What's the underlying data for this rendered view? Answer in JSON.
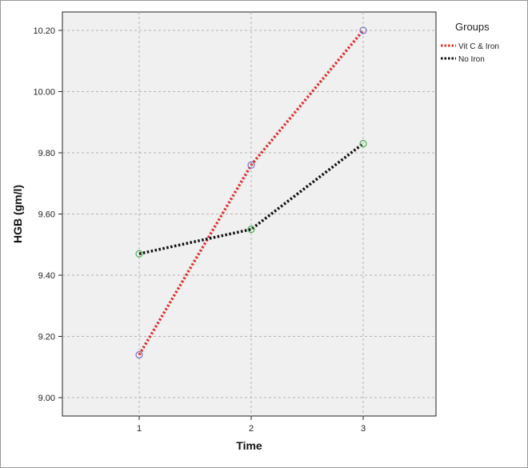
{
  "chart_data": {
    "type": "line",
    "x": [
      1,
      2,
      3
    ],
    "xlabel": "Time",
    "ylabel": "HGB (gm/l)",
    "ylim": [
      8.94,
      10.26
    ],
    "yticks": [
      "9.00",
      "9.20",
      "9.40",
      "9.60",
      "9.80",
      "10.00",
      "10.20"
    ],
    "xticks": [
      "1",
      "2",
      "3"
    ],
    "grid": true,
    "legend": {
      "title": "Groups",
      "placement": "right"
    },
    "series": [
      {
        "name": "Vit C & Iron",
        "values": [
          9.14,
          9.76,
          10.2
        ],
        "color": "#e03030",
        "marker_color": "#7a6fc0"
      },
      {
        "name": "No Iron",
        "values": [
          9.47,
          9.55,
          9.83
        ],
        "color": "#111111",
        "marker_color": "#4caf50"
      }
    ]
  }
}
